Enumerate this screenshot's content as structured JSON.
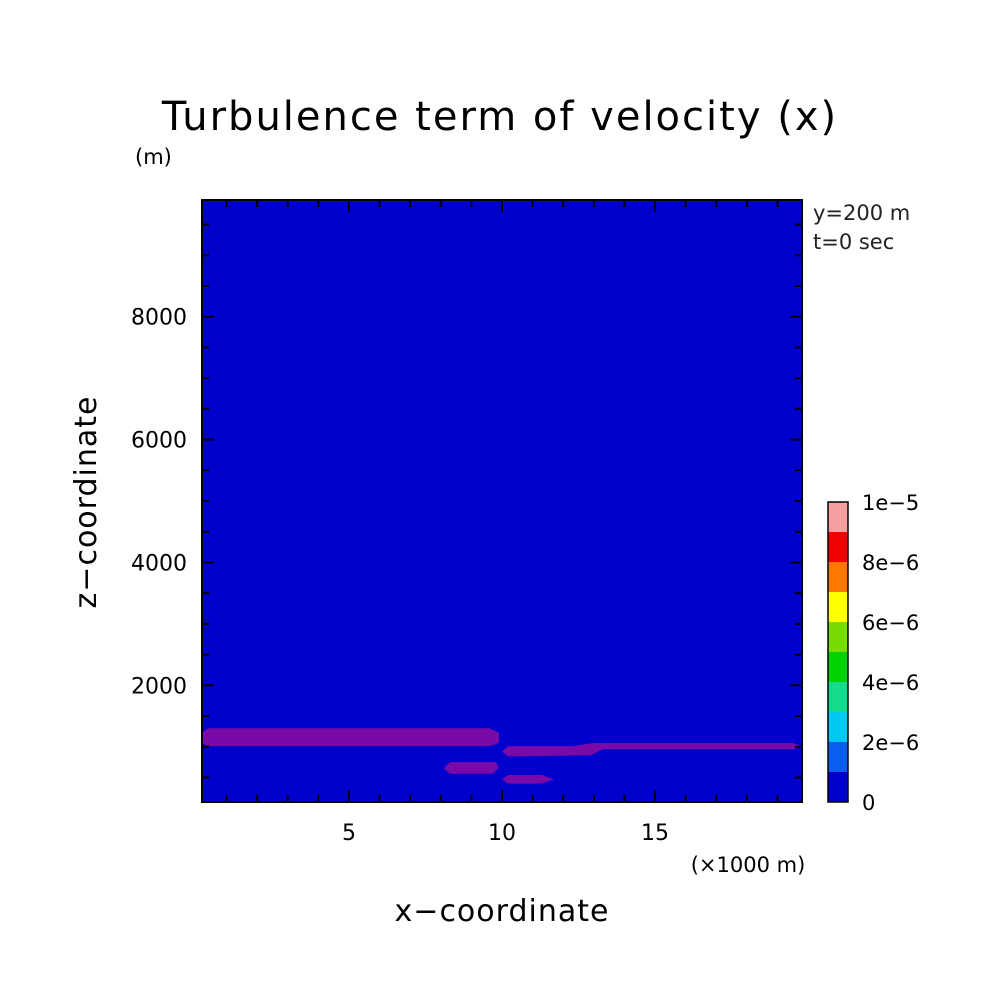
{
  "chart_data": {
    "type": "heatmap",
    "title": "Turbulence term of velocity (x)",
    "y_unit": "(m)",
    "xlabel": "x−coordinate",
    "ylabel": "z−coordinate",
    "x_unit": "(×1000 m)",
    "annotations": [
      "y=200 m",
      "t=0 sec"
    ],
    "xlim": [
      0.2,
      19.8
    ],
    "ylim": [
      100,
      9900
    ],
    "x_ticks": [
      5,
      10,
      15
    ],
    "x_tick_labels": [
      "5",
      "10",
      "15"
    ],
    "y_ticks": [
      2000,
      4000,
      6000,
      8000
    ],
    "y_tick_labels": [
      "2000",
      "4000",
      "6000",
      "8000"
    ],
    "background_level": 0,
    "background_color": "#0000cd",
    "regions": [
      {
        "level": "0-1e-6",
        "color": "#7a0aa8",
        "x": [
          0.2,
          0.4,
          9.6,
          9.9,
          9.9,
          9.6,
          0.4,
          0.2
        ],
        "z": [
          1230,
          1300,
          1300,
          1230,
          1060,
          1010,
          1010,
          1060
        ]
      },
      {
        "level": "0-1e-6",
        "color": "#7a0aa8",
        "x": [
          10.0,
          10.2,
          12.3,
          13.0,
          19.5,
          19.8,
          19.5,
          13.3,
          12.9,
          10.2,
          10.0
        ],
        "z": [
          920,
          1010,
          1010,
          1060,
          1060,
          1010,
          960,
          960,
          860,
          840,
          920
        ]
      },
      {
        "level": "0-1e-6",
        "color": "#7a0aa8",
        "x": [
          8.1,
          8.3,
          9.8,
          9.9,
          9.7,
          8.3,
          8.1
        ],
        "z": [
          650,
          750,
          750,
          660,
          560,
          560,
          650
        ]
      },
      {
        "level": "0-1e-6",
        "color": "#7a0aa8",
        "x": [
          10.0,
          10.2,
          11.3,
          11.7,
          11.3,
          10.2,
          10.0
        ],
        "z": [
          470,
          540,
          540,
          470,
          400,
          400,
          470
        ]
      }
    ],
    "colorbar": {
      "bounds": [
        0,
        1e-05
      ],
      "colors": [
        "#0000cd",
        "#0a5ff0",
        "#00c8f0",
        "#14dc8c",
        "#00d200",
        "#78dc00",
        "#ffff00",
        "#ff7800",
        "#f00000",
        "#f5a0a0"
      ],
      "labels": [
        "0",
        "2e−6",
        "4e−6",
        "6e−6",
        "8e−6",
        "1e−5"
      ]
    }
  }
}
